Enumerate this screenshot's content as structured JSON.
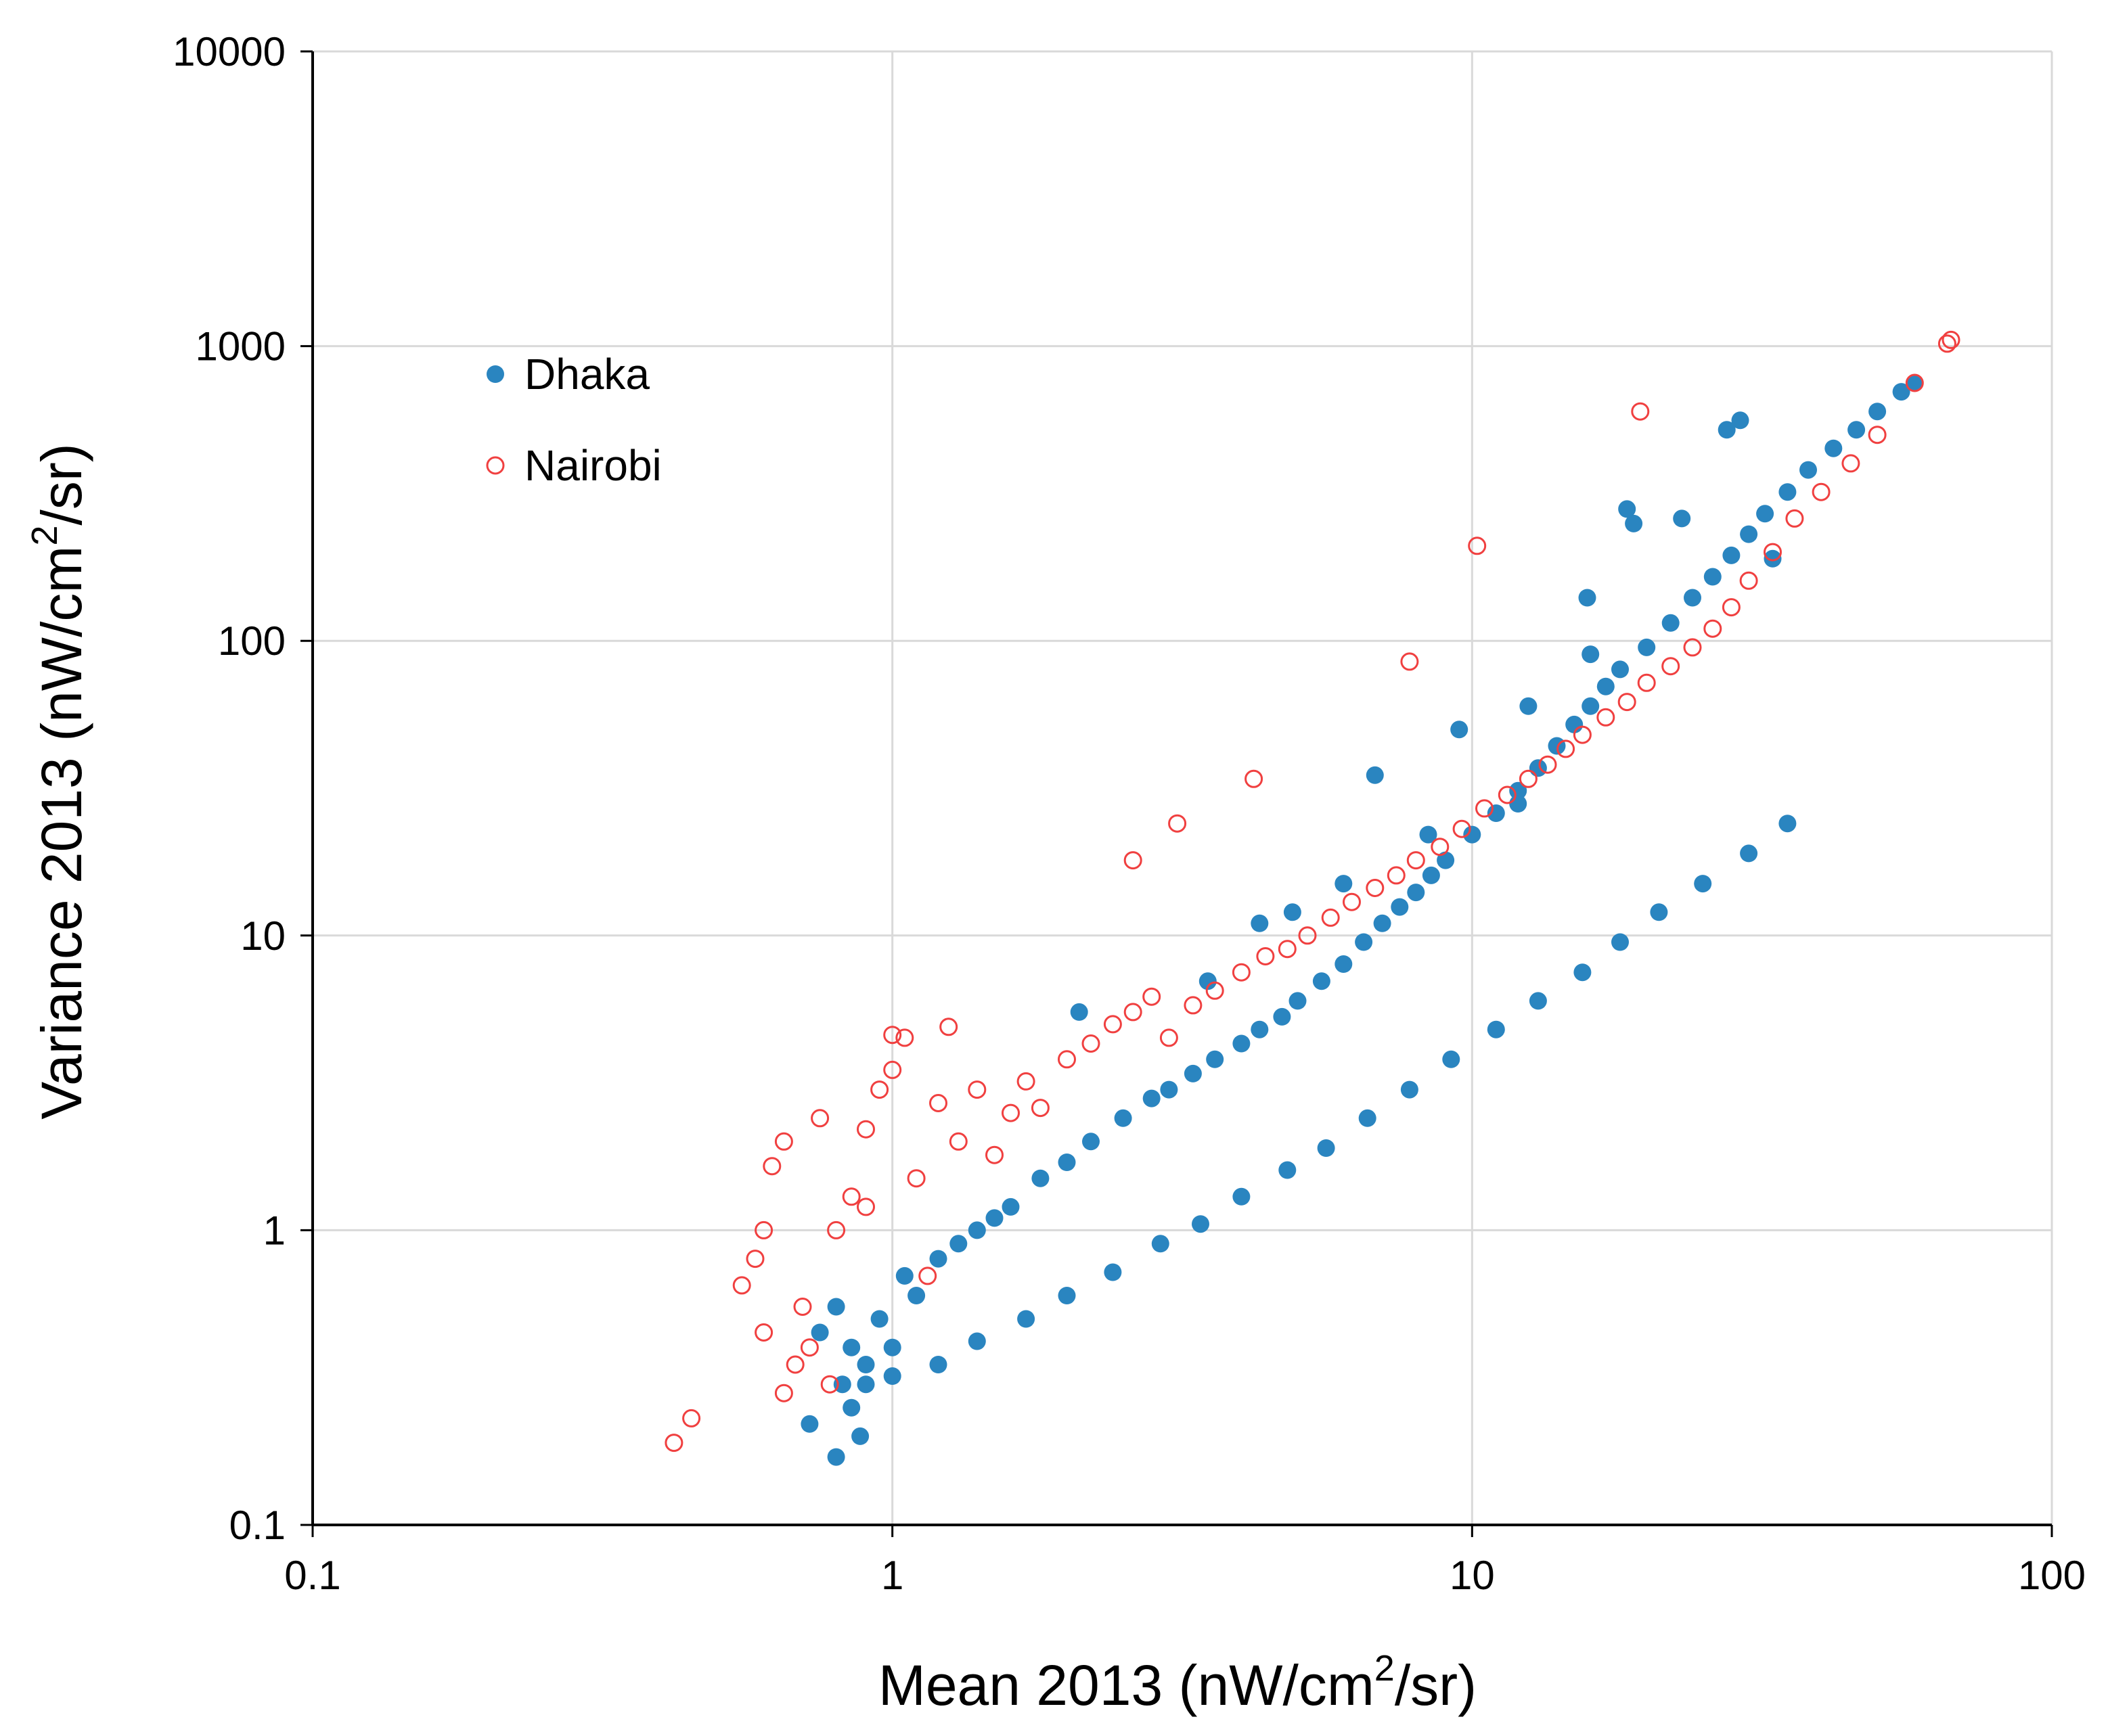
{
  "chart_data": {
    "type": "scatter",
    "xscale": "log",
    "yscale": "log",
    "xlim": [
      0.1,
      100
    ],
    "ylim": [
      0.1,
      10000
    ],
    "x_ticks": [
      "0.1",
      "1",
      "10",
      "100"
    ],
    "y_ticks": [
      "0.1",
      "1",
      "10",
      "100",
      "1000",
      "10000"
    ],
    "xlabel": "Mean 2013 (nW/cm",
    "ylabel": "Variance 2013 (nW/cm",
    "label_superscript": "2",
    "label_suffix": "/sr)",
    "grid": true,
    "legend_position": "top-left",
    "series": [
      {
        "name": "Dhaka",
        "color": "#2A85C0",
        "marker": "filled-circle",
        "x": [
          0.72,
          0.75,
          0.8,
          0.82,
          0.85,
          0.88,
          0.9,
          0.95,
          1.0,
          1.05,
          1.1,
          1.2,
          1.3,
          1.4,
          1.5,
          1.6,
          1.8,
          2.0,
          2.2,
          2.5,
          2.8,
          3.0,
          3.3,
          3.6,
          4.0,
          4.3,
          4.7,
          5.0,
          5.5,
          6.0,
          6.5,
          7.0,
          7.5,
          8.0,
          8.5,
          9.0,
          10.0,
          11.0,
          12.0,
          13.0,
          14.0,
          15.0,
          16.0,
          17.0,
          18.0,
          20.0,
          22.0,
          24.0,
          26.0,
          28.0,
          30.0,
          32.0,
          35.0,
          38.0,
          42.0,
          46.0,
          50.0,
          55.0,
          58.0,
          0.8,
          0.85,
          0.9,
          1.0,
          1.2,
          1.4,
          1.7,
          2.0,
          2.4,
          2.9,
          3.4,
          4.0,
          4.8,
          5.6,
          6.6,
          7.8,
          9.2,
          11.0,
          13.0,
          15.5,
          18.0,
          21.0,
          25.0,
          30.0,
          35.0,
          2.1,
          3.5,
          4.9,
          6.8,
          9.5,
          12.5,
          15.8,
          19.0,
          23.0,
          27.5,
          33.0,
          18.5,
          29.0,
          16.0,
          12.0,
          8.4,
          6.0,
          4.3
        ],
        "y": [
          0.22,
          0.45,
          0.17,
          0.3,
          0.25,
          0.2,
          0.35,
          0.5,
          0.4,
          0.7,
          0.6,
          0.8,
          0.9,
          1.0,
          1.1,
          1.2,
          1.5,
          1.7,
          2.0,
          2.4,
          2.8,
          3.0,
          3.4,
          3.8,
          4.3,
          4.8,
          5.3,
          6.0,
          7.0,
          8.0,
          9.5,
          11.0,
          12.5,
          14.0,
          16.0,
          18.0,
          22.0,
          26.0,
          31.0,
          37.0,
          44.0,
          52.0,
          60.0,
          70.0,
          80.0,
          95.0,
          115.0,
          140.0,
          165.0,
          195.0,
          230.0,
          270.0,
          320.0,
          380.0,
          450.0,
          520.0,
          600.0,
          700.0,
          750.0,
          0.55,
          0.4,
          0.3,
          0.32,
          0.35,
          0.42,
          0.5,
          0.6,
          0.72,
          0.9,
          1.05,
          1.3,
          1.6,
          1.9,
          2.4,
          3.0,
          3.8,
          4.8,
          6.0,
          7.5,
          9.5,
          12.0,
          15.0,
          19.0,
          24.0,
          5.5,
          7.0,
          12.0,
          35.0,
          50.0,
          60.0,
          140.0,
          250.0,
          260.0,
          520.0,
          190.0,
          280.0,
          560.0,
          90.0,
          28.0,
          22.0,
          15.0,
          11.0
        ]
      },
      {
        "name": "Nairobi",
        "color": "#F04040",
        "marker": "open-circle",
        "x": [
          0.42,
          0.45,
          0.55,
          0.58,
          0.6,
          0.62,
          0.65,
          0.68,
          0.7,
          0.72,
          0.75,
          0.78,
          0.8,
          0.85,
          0.9,
          0.95,
          1.0,
          1.05,
          1.1,
          1.15,
          1.2,
          1.3,
          1.4,
          1.5,
          1.6,
          1.7,
          1.8,
          2.0,
          2.2,
          2.4,
          2.6,
          2.8,
          3.0,
          3.3,
          3.6,
          4.0,
          4.4,
          4.8,
          5.2,
          5.7,
          6.2,
          6.8,
          7.4,
          8.0,
          8.8,
          9.6,
          10.5,
          11.5,
          12.5,
          13.5,
          14.5,
          15.5,
          17.0,
          18.5,
          20.0,
          22.0,
          24.0,
          26.0,
          28.0,
          30.0,
          33.0,
          36.0,
          40.0,
          45.0,
          50.0,
          58.0,
          66.0,
          67.0,
          19.5,
          10.2,
          7.8,
          4.2,
          3.1,
          2.6,
          1.0,
          1.25,
          0.9,
          0.6,
          0.65
        ],
        "y": [
          0.19,
          0.23,
          0.65,
          0.8,
          0.45,
          1.65,
          2.0,
          0.35,
          0.55,
          0.4,
          2.4,
          0.3,
          1.0,
          1.3,
          2.2,
          3.0,
          3.5,
          4.5,
          1.5,
          0.7,
          2.7,
          2.0,
          3.0,
          1.8,
          2.5,
          3.2,
          2.6,
          3.8,
          4.3,
          5.0,
          5.5,
          6.2,
          4.5,
          5.8,
          6.5,
          7.5,
          8.5,
          9.0,
          10.0,
          11.5,
          13.0,
          14.5,
          16.0,
          18.0,
          20.0,
          23.0,
          27.0,
          30.0,
          34.0,
          38.0,
          43.0,
          48.0,
          55.0,
          62.0,
          72.0,
          82.0,
          95.0,
          110.0,
          130.0,
          160.0,
          200.0,
          260.0,
          320.0,
          400.0,
          500.0,
          750.0,
          1020.0,
          1050.0,
          600.0,
          210.0,
          85.0,
          34.0,
          24.0,
          18.0,
          4.6,
          4.9,
          1.2,
          1.0,
          0.28
        ]
      }
    ]
  }
}
